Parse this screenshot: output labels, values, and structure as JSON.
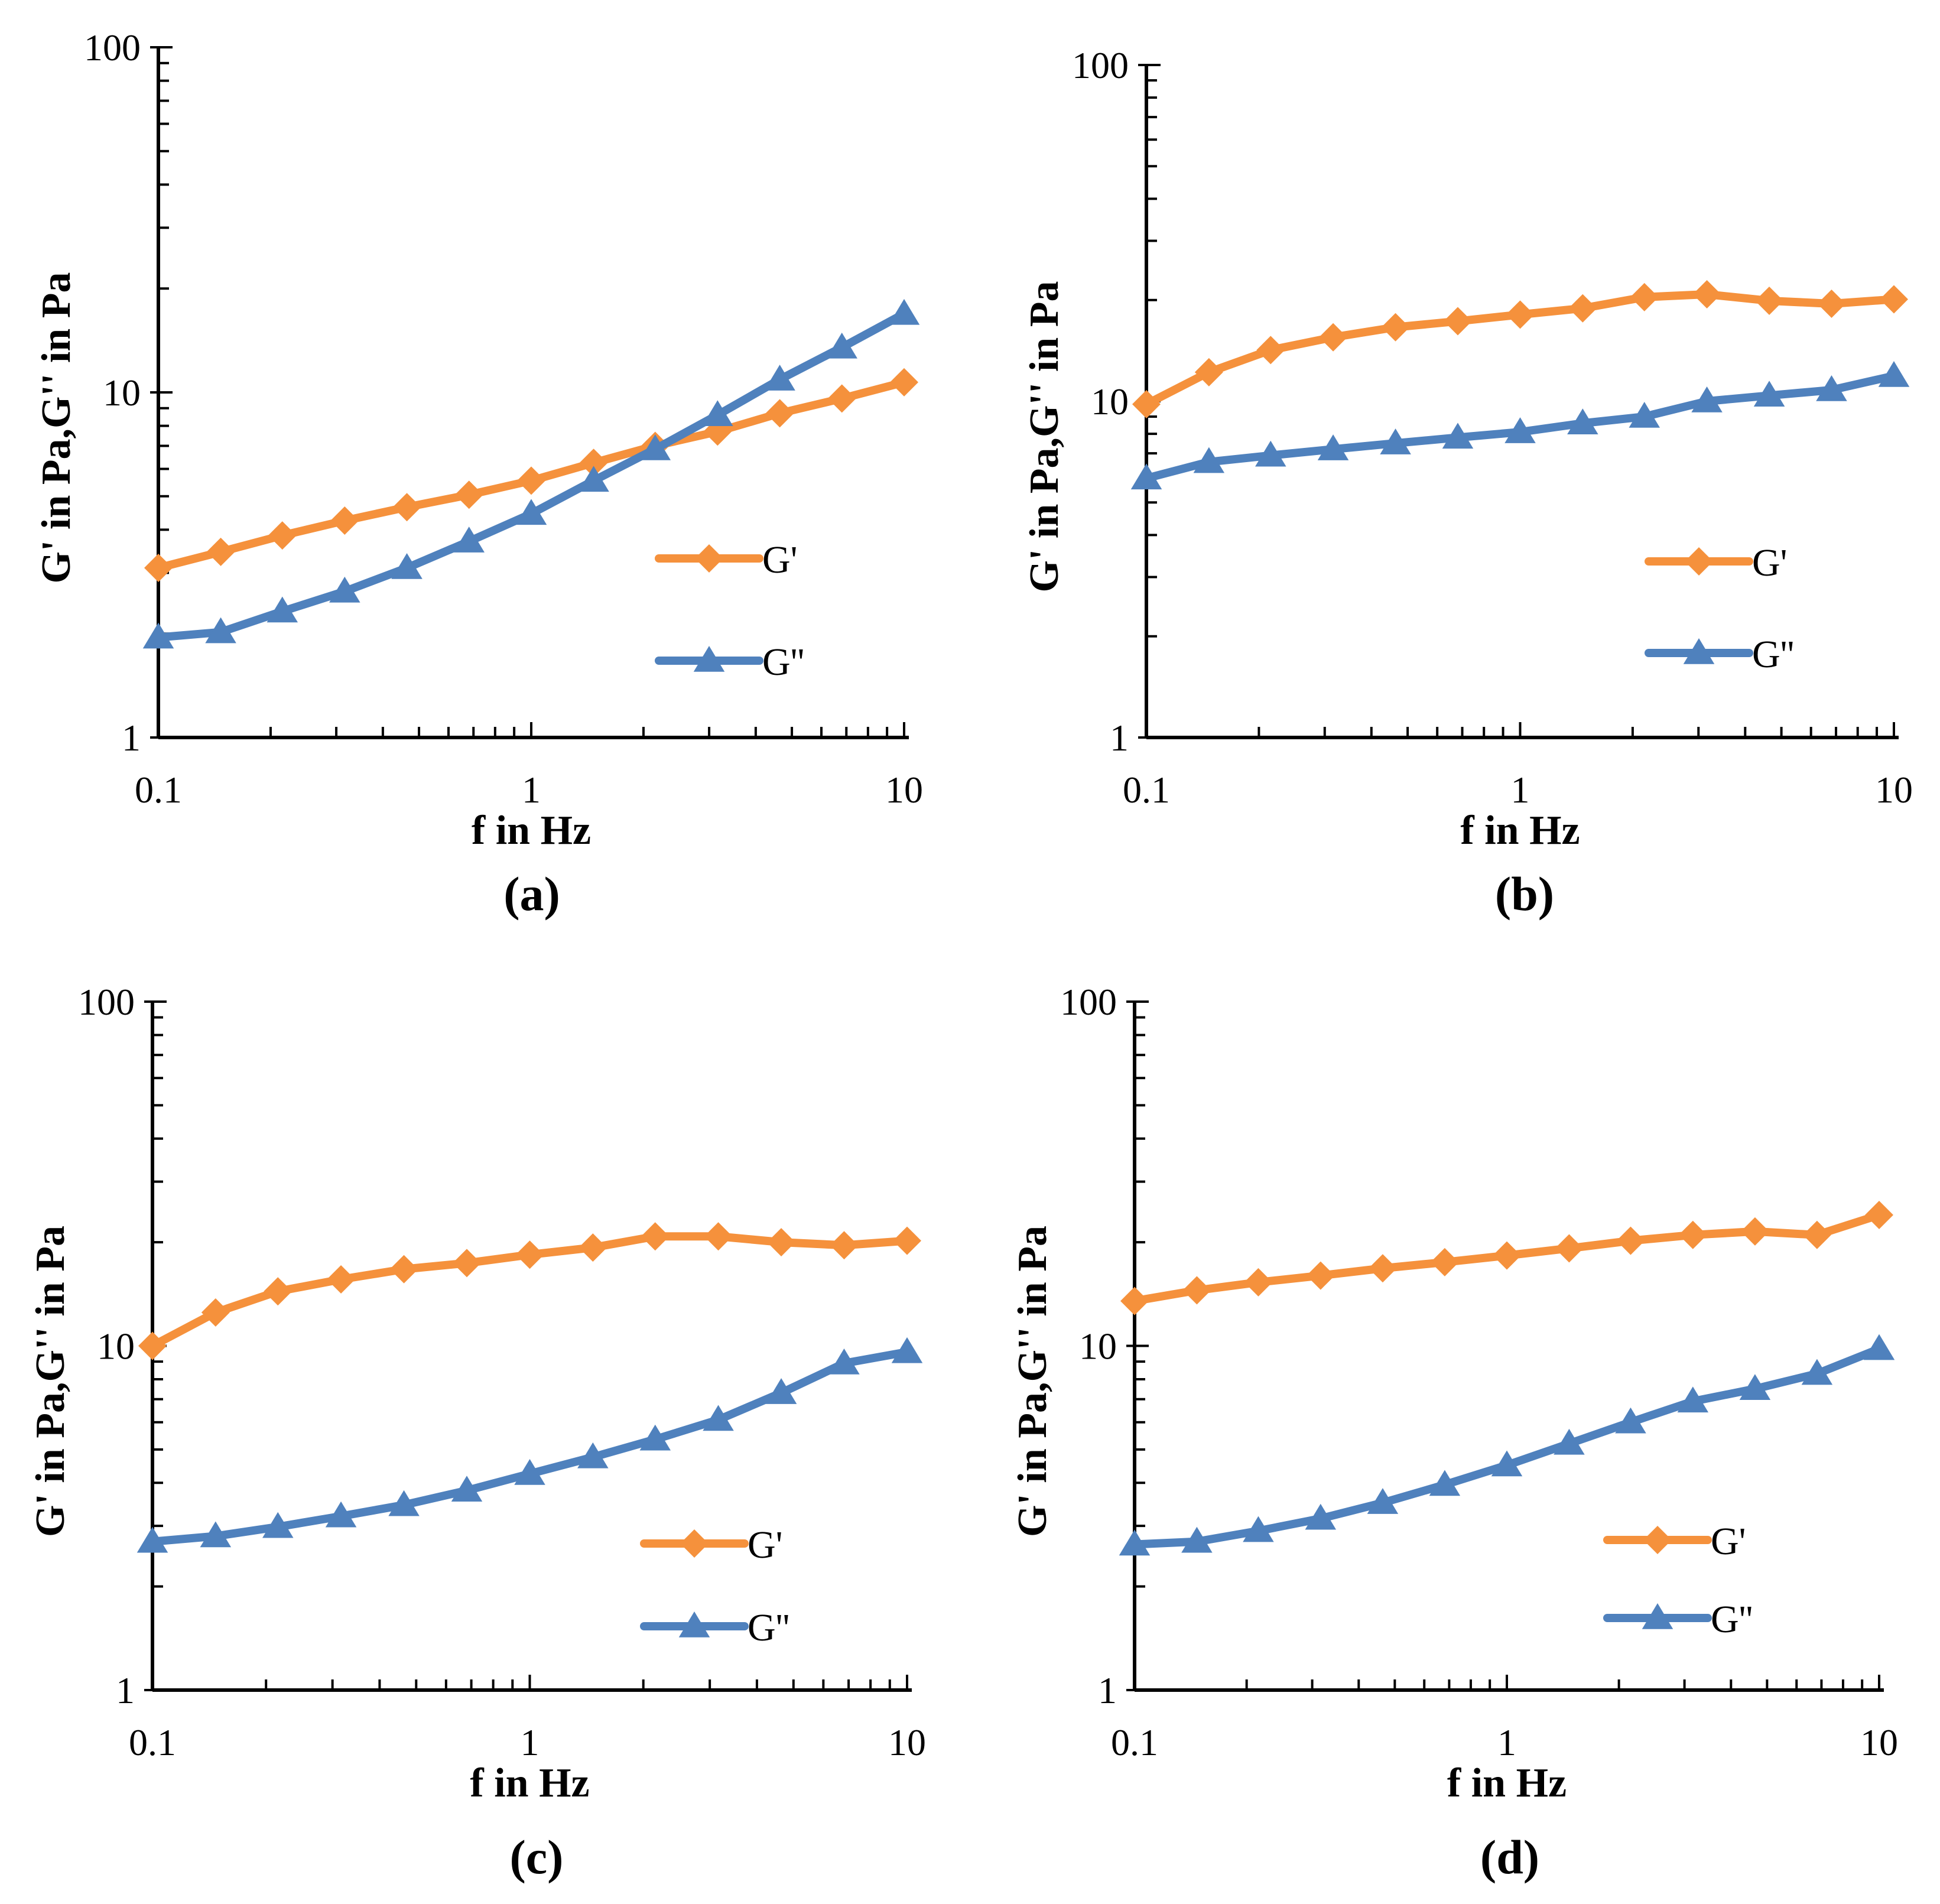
{
  "colors": {
    "g_prime": "#f5913c",
    "g_double_prime": "#4f81bd",
    "axis": "#000000"
  },
  "chart_data": [
    {
      "panel": "(a)",
      "type": "line",
      "xscale": "log",
      "yscale": "log",
      "xlim": [
        0.1,
        10
      ],
      "ylim": [
        1,
        100
      ],
      "xticks": [
        "0.1",
        "1",
        "10"
      ],
      "yticks": [
        "1",
        "10",
        "100"
      ],
      "xlabel": "f  in Hz",
      "ylabel": "G' in Pa,G'' in Pa",
      "legend_position": "center-right",
      "x": [
        0.1,
        0.147,
        0.215,
        0.316,
        0.464,
        0.681,
        1.0,
        1.47,
        2.15,
        3.16,
        4.64,
        6.81,
        10.0
      ],
      "series": [
        {
          "name": "G'",
          "marker": "diamond",
          "color": "#f5913c",
          "values": [
            3.1,
            3.45,
            3.85,
            4.25,
            4.65,
            5.05,
            5.55,
            6.25,
            7.0,
            7.7,
            8.7,
            9.6,
            10.7
          ]
        },
        {
          "name": "G''",
          "marker": "triangle",
          "color": "#4f81bd",
          "values": [
            1.95,
            2.02,
            2.32,
            2.65,
            3.1,
            3.7,
            4.45,
            5.55,
            6.85,
            8.6,
            10.9,
            13.5,
            16.9
          ]
        }
      ]
    },
    {
      "panel": "(b)",
      "type": "line",
      "xscale": "log",
      "yscale": "log",
      "xlim": [
        0.1,
        10
      ],
      "ylim": [
        1,
        100
      ],
      "xticks": [
        "0.1",
        "1",
        "10"
      ],
      "yticks": [
        "1",
        "10",
        "100"
      ],
      "xlabel": "f  in Hz",
      "ylabel": "G' in Pa,G'' in Pa",
      "legend_position": "center-right",
      "x": [
        0.1,
        0.147,
        0.215,
        0.316,
        0.464,
        0.681,
        1.0,
        1.47,
        2.15,
        3.16,
        4.64,
        6.81,
        10.0
      ],
      "series": [
        {
          "name": "G'",
          "marker": "diamond",
          "color": "#f5913c",
          "values": [
            9.8,
            12.2,
            14.2,
            15.5,
            16.6,
            17.3,
            18.1,
            18.9,
            20.4,
            20.8,
            19.9,
            19.5,
            20.1
          ]
        },
        {
          "name": "G''",
          "marker": "triangle",
          "color": "#4f81bd",
          "values": [
            5.9,
            6.6,
            6.9,
            7.2,
            7.5,
            7.8,
            8.1,
            8.6,
            9.0,
            10.0,
            10.4,
            10.8,
            11.9
          ]
        }
      ]
    },
    {
      "panel": "(c)",
      "type": "line",
      "xscale": "log",
      "yscale": "log",
      "xlim": [
        0.1,
        10
      ],
      "ylim": [
        1,
        100
      ],
      "xticks": [
        "0.1",
        "1",
        "10"
      ],
      "yticks": [
        "1",
        "10",
        "100"
      ],
      "xlabel": "f  in Hz",
      "ylabel": "G' in Pa,G'' in Pa",
      "legend_position": "bottom-right",
      "x": [
        0.1,
        0.147,
        0.215,
        0.316,
        0.464,
        0.681,
        1.0,
        1.47,
        2.15,
        3.16,
        4.64,
        6.81,
        10.0
      ],
      "series": [
        {
          "name": "G'",
          "marker": "diamond",
          "color": "#f5913c",
          "values": [
            10.0,
            12.5,
            14.4,
            15.6,
            16.7,
            17.4,
            18.4,
            19.3,
            20.8,
            20.8,
            20.0,
            19.6,
            20.2
          ]
        },
        {
          "name": "G''",
          "marker": "triangle",
          "color": "#4f81bd",
          "values": [
            2.7,
            2.8,
            2.98,
            3.2,
            3.45,
            3.8,
            4.25,
            4.75,
            5.35,
            6.1,
            7.3,
            8.9,
            9.6
          ]
        }
      ]
    },
    {
      "panel": "(d)",
      "type": "line",
      "xscale": "log",
      "yscale": "log",
      "xlim": [
        0.1,
        10
      ],
      "ylim": [
        1,
        100
      ],
      "xticks": [
        "0.1",
        "1",
        "10"
      ],
      "yticks": [
        "1",
        "10",
        "100"
      ],
      "xlabel": "f  in Hz",
      "ylabel": "G' in Pa,G'' in Pa",
      "legend_position": "bottom-right",
      "x": [
        0.1,
        0.147,
        0.215,
        0.316,
        0.464,
        0.681,
        1.0,
        1.47,
        2.15,
        3.16,
        4.64,
        6.81,
        10.0
      ],
      "series": [
        {
          "name": "G'",
          "marker": "diamond",
          "color": "#f5913c",
          "values": [
            13.5,
            14.5,
            15.3,
            16.0,
            16.8,
            17.5,
            18.3,
            19.2,
            20.2,
            21.0,
            21.5,
            21.0,
            24.0
          ]
        },
        {
          "name": "G''",
          "marker": "triangle",
          "color": "#4f81bd",
          "values": [
            2.65,
            2.7,
            2.9,
            3.15,
            3.5,
            3.95,
            4.5,
            5.2,
            6.0,
            6.9,
            7.5,
            8.3,
            9.8
          ]
        }
      ]
    }
  ]
}
